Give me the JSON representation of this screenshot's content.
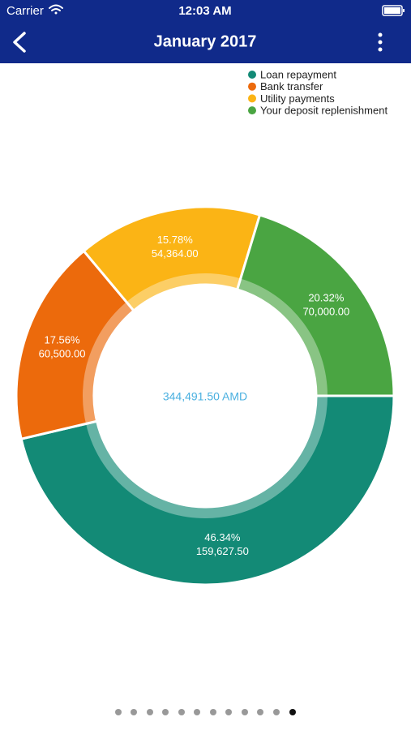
{
  "status_bar": {
    "carrier": "Carrier",
    "time": "12:03 AM"
  },
  "header": {
    "title": "January 2017"
  },
  "chart_data": {
    "type": "donut",
    "categories": [
      "Loan repayment",
      "Bank transfer",
      "Utility payments",
      "Your deposit replenishment"
    ],
    "colors": [
      "#138a76",
      "#ec6a0c",
      "#fbb415",
      "#4aa542"
    ],
    "values": [
      159627.5,
      60500,
      54364,
      70000
    ],
    "value_labels": [
      "159,627.50",
      "60,500.00",
      "54,364.00",
      "70,000.00"
    ],
    "shares": [
      46.34,
      17.56,
      15.78,
      20.32
    ],
    "share_labels": [
      "46.34%",
      "17.56%",
      "15.78%",
      "20.32%"
    ],
    "total": 344491.5,
    "total_label": "344,491.50 AMD",
    "legend": "top-right"
  }
}
